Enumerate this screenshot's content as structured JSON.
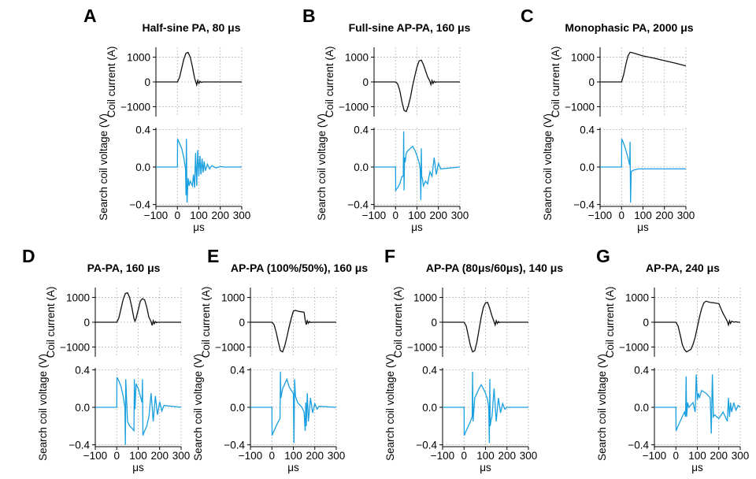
{
  "colors": {
    "current": "#111111",
    "voltage": "#1aa0e0",
    "grid": "#b8b8b8"
  },
  "chart_data": [
    {
      "letter": "A",
      "title": "Half-sine PA, 80 μs",
      "type": "line",
      "current": {
        "ylabel": "Coil current (A)",
        "ylim": [
          -1400,
          1400
        ],
        "yticks": [
          "1000",
          "0",
          "−1000"
        ],
        "grid": true,
        "x": [
          -100,
          0,
          10,
          20,
          30,
          40,
          50,
          60,
          70,
          80,
          85,
          90,
          95,
          100,
          105,
          110,
          120,
          130,
          300
        ],
        "y": [
          0,
          0,
          180,
          550,
          920,
          1160,
          1190,
          1000,
          620,
          150,
          30,
          -120,
          60,
          -60,
          30,
          -15,
          0,
          0,
          0
        ]
      },
      "voltage": {
        "ylabel": "Search coil voltage (V)",
        "ylim": [
          -0.42,
          0.42
        ],
        "yticks": [
          "0.4",
          "0.0",
          "−0.4"
        ],
        "grid": true,
        "xlabel": "μs",
        "xlim": [
          -100,
          300
        ],
        "xticks": [
          "−100",
          "0",
          "100",
          "200",
          "300"
        ],
        "x": [
          -100,
          0,
          1,
          5,
          10,
          20,
          30,
          38,
          40,
          42,
          45,
          50,
          55,
          60,
          70,
          75,
          80,
          85,
          90,
          95,
          100,
          105,
          110,
          115,
          120,
          125,
          130,
          140,
          150,
          160,
          180,
          200,
          220,
          300
        ],
        "y": [
          0,
          0,
          0.3,
          0.28,
          0.25,
          0.2,
          0.1,
          -0.02,
          -0.3,
          0.3,
          -0.38,
          -0.12,
          -0.2,
          -0.15,
          -0.2,
          -0.08,
          -0.22,
          0.15,
          -0.2,
          0.18,
          -0.1,
          0.12,
          -0.08,
          0.09,
          -0.06,
          0.06,
          -0.04,
          0.03,
          -0.02,
          0.015,
          -0.01,
          0.005,
          0,
          0
        ]
      }
    },
    {
      "letter": "B",
      "title": "Full-sine AP-PA, 160 μs",
      "type": "line",
      "current": {
        "ylabel": "Coil current (A)",
        "ylim": [
          -1400,
          1400
        ],
        "yticks": [
          "1000",
          "0",
          "−1000"
        ],
        "grid": true,
        "x": [
          -100,
          0,
          10,
          20,
          30,
          40,
          50,
          60,
          70,
          80,
          90,
          100,
          110,
          120,
          130,
          140,
          150,
          160,
          165,
          170,
          175,
          180,
          185,
          190,
          200,
          300
        ],
        "y": [
          0,
          0,
          -80,
          -350,
          -800,
          -1150,
          -1200,
          -950,
          -600,
          -150,
          250,
          600,
          850,
          880,
          700,
          450,
          200,
          30,
          -110,
          60,
          -60,
          30,
          -20,
          0,
          0,
          0
        ]
      },
      "voltage": {
        "ylabel": "Search coil voltage (V)",
        "ylim": [
          -0.42,
          0.42
        ],
        "yticks": [
          "0.4",
          "0.0",
          "−0.4"
        ],
        "grid": true,
        "xlabel": "μs",
        "xlim": [
          -100,
          300
        ],
        "xticks": [
          "−100",
          "0",
          "100",
          "200",
          "300"
        ],
        "x": [
          -100,
          0,
          1,
          10,
          20,
          30,
          36,
          38,
          40,
          42,
          45,
          50,
          60,
          70,
          80,
          90,
          100,
          110,
          115,
          118,
          120,
          122,
          125,
          130,
          140,
          150,
          160,
          170,
          180,
          190,
          200,
          210,
          300
        ],
        "y": [
          0,
          0,
          -0.25,
          -0.22,
          -0.18,
          -0.1,
          -0.1,
          0.38,
          -0.25,
          0.1,
          0.05,
          0.15,
          0.18,
          0.2,
          0.22,
          0.18,
          0.12,
          0.05,
          -0.02,
          -0.35,
          0.2,
          -0.1,
          -0.12,
          -0.2,
          -0.15,
          -0.18,
          -0.05,
          -0.1,
          0.1,
          -0.08,
          0.04,
          -0.02,
          0
        ]
      }
    },
    {
      "letter": "C",
      "title": "Monophasic PA, 2000 μs",
      "type": "line",
      "current": {
        "ylabel": "Coil current (A)",
        "ylim": [
          -1400,
          1400
        ],
        "yticks": [
          "1000",
          "0",
          "−1000"
        ],
        "grid": true,
        "x": [
          -100,
          0,
          10,
          20,
          30,
          40,
          50,
          100,
          150,
          200,
          250,
          300
        ],
        "y": [
          0,
          0,
          300,
          700,
          1050,
          1200,
          1180,
          1050,
          960,
          860,
          760,
          650
        ]
      },
      "voltage": {
        "ylabel": "Search coil voltage (V)",
        "ylim": [
          -0.42,
          0.42
        ],
        "yticks": [
          "0.4",
          "0.0",
          "−0.4"
        ],
        "grid": true,
        "xlabel": "μs",
        "xlim": [
          -100,
          300
        ],
        "xticks": [
          "−100",
          "0",
          "100",
          "200",
          "300"
        ],
        "x": [
          -100,
          0,
          1,
          10,
          20,
          30,
          38,
          40,
          42,
          45,
          50,
          60,
          80,
          300
        ],
        "y": [
          0,
          0,
          0.3,
          0.25,
          0.18,
          0.1,
          0.02,
          0.27,
          -0.38,
          -0.05,
          -0.04,
          -0.03,
          -0.02,
          -0.02
        ]
      }
    },
    {
      "letter": "D",
      "title": "PA-PA, 160 μs",
      "type": "line",
      "current": {
        "ylabel": "Coil current (A)",
        "ylim": [
          -1400,
          1400
        ],
        "yticks": [
          "1000",
          "0",
          "−1000"
        ],
        "grid": true,
        "x": [
          -100,
          0,
          10,
          20,
          30,
          40,
          50,
          60,
          70,
          80,
          85,
          90,
          100,
          110,
          120,
          130,
          140,
          150,
          160,
          165,
          170,
          175,
          180,
          185,
          190,
          200,
          300
        ],
        "y": [
          0,
          0,
          180,
          550,
          920,
          1160,
          1190,
          1000,
          620,
          150,
          40,
          150,
          500,
          850,
          950,
          900,
          600,
          200,
          20,
          -130,
          60,
          -60,
          30,
          -20,
          0,
          0,
          0
        ]
      },
      "voltage": {
        "ylabel": "Search coil voltage (V)",
        "ylim": [
          -0.42,
          0.42
        ],
        "yticks": [
          "0.4",
          "0.0",
          "−0.4"
        ],
        "grid": true,
        "xlabel": "μs",
        "xlim": [
          -100,
          300
        ],
        "xticks": [
          "−100",
          "0",
          "100",
          "200",
          "300"
        ],
        "x": [
          -100,
          0,
          1,
          10,
          20,
          30,
          38,
          40,
          42,
          50,
          60,
          70,
          80,
          82,
          85,
          90,
          100,
          110,
          118,
          120,
          122,
          130,
          140,
          150,
          160,
          170,
          180,
          190,
          200,
          210,
          220,
          300
        ],
        "y": [
          0,
          0,
          0.32,
          0.28,
          0.22,
          0.12,
          0.0,
          -0.4,
          0.3,
          -0.15,
          -0.2,
          -0.22,
          -0.25,
          0.3,
          -0.02,
          0.25,
          0.2,
          0.12,
          0.05,
          0.3,
          -0.3,
          -0.25,
          -0.2,
          -0.1,
          0.15,
          -0.15,
          0.12,
          -0.08,
          0.06,
          -0.04,
          0.02,
          0
        ]
      }
    },
    {
      "letter": "E",
      "title": "AP-PA (100%/50%), 160 μs",
      "type": "line",
      "current": {
        "ylabel": "Coil current (A)",
        "ylim": [
          -1400,
          1400
        ],
        "yticks": [
          "1000",
          "0",
          "−1000"
        ],
        "grid": true,
        "x": [
          -100,
          0,
          10,
          20,
          30,
          40,
          50,
          60,
          70,
          80,
          90,
          100,
          110,
          120,
          130,
          140,
          150,
          155,
          160,
          165,
          170,
          175,
          180,
          190,
          300
        ],
        "y": [
          0,
          0,
          -100,
          -400,
          -800,
          -1150,
          -1200,
          -950,
          -600,
          -200,
          150,
          450,
          480,
          450,
          430,
          420,
          400,
          100,
          -100,
          60,
          -40,
          30,
          -10,
          0,
          0
        ]
      },
      "voltage": {
        "ylabel": "Search coil voltage (V)",
        "ylim": [
          -0.42,
          0.42
        ],
        "yticks": [
          "0.4",
          "0.0",
          "−0.4"
        ],
        "grid": true,
        "xlabel": "μs",
        "xlim": [
          -100,
          300
        ],
        "xticks": [
          "−100",
          "0",
          "100",
          "200",
          "300"
        ],
        "x": [
          -100,
          0,
          1,
          10,
          20,
          30,
          38,
          40,
          42,
          50,
          60,
          70,
          80,
          90,
          100,
          103,
          106,
          110,
          120,
          140,
          150,
          155,
          158,
          160,
          165,
          170,
          180,
          190,
          200,
          210,
          220,
          300
        ],
        "y": [
          0,
          0,
          -0.3,
          -0.25,
          -0.2,
          -0.15,
          -0.12,
          0.38,
          0.1,
          0.2,
          0.25,
          0.3,
          0.22,
          0.18,
          0.15,
          -0.38,
          0.3,
          0.12,
          0.05,
          0.0,
          -0.05,
          -0.25,
          0.05,
          -0.2,
          0.15,
          -0.15,
          0.1,
          -0.06,
          0.04,
          -0.02,
          0.01,
          0
        ]
      }
    },
    {
      "letter": "F",
      "title": "AP-PA (80μs/60μs), 140 μs",
      "type": "line",
      "current": {
        "ylabel": "Coil current (A)",
        "ylim": [
          -1400,
          1400
        ],
        "yticks": [
          "1000",
          "0",
          "−1000"
        ],
        "grid": true,
        "x": [
          -100,
          0,
          10,
          20,
          30,
          40,
          50,
          60,
          70,
          80,
          90,
          100,
          110,
          120,
          130,
          140,
          145,
          150,
          155,
          160,
          165,
          170,
          180,
          300
        ],
        "y": [
          0,
          0,
          -150,
          -550,
          -950,
          -1200,
          -1150,
          -800,
          -300,
          200,
          600,
          780,
          800,
          550,
          250,
          20,
          -110,
          60,
          -50,
          30,
          -15,
          0,
          0,
          0
        ]
      },
      "voltage": {
        "ylabel": "Search coil voltage (V)",
        "ylim": [
          -0.42,
          0.42
        ],
        "yticks": [
          "0.4",
          "0.0",
          "−0.4"
        ],
        "grid": true,
        "xlabel": "μs",
        "xlim": [
          -100,
          300
        ],
        "xticks": [
          "−100",
          "0",
          "100",
          "200",
          "300"
        ],
        "x": [
          -100,
          0,
          1,
          10,
          20,
          30,
          38,
          40,
          42,
          50,
          60,
          70,
          80,
          90,
          100,
          110,
          115,
          118,
          120,
          122,
          125,
          130,
          140,
          150,
          160,
          170,
          180,
          190,
          200,
          300
        ],
        "y": [
          0,
          0,
          -0.3,
          -0.25,
          -0.2,
          -0.15,
          -0.1,
          0.38,
          -0.15,
          0.1,
          0.15,
          0.2,
          0.24,
          0.2,
          0.15,
          0.08,
          0.0,
          -0.38,
          0.3,
          -0.2,
          -0.15,
          -0.1,
          0.2,
          -0.15,
          0.1,
          -0.06,
          0.04,
          -0.02,
          0,
          0
        ]
      }
    },
    {
      "letter": "G",
      "title": "AP-PA, 240 μs",
      "type": "line",
      "current": {
        "ylabel": "Coil current (A)",
        "ylim": [
          -1400,
          1400
        ],
        "yticks": [
          "1000",
          "0",
          "−1000"
        ],
        "grid": true,
        "x": [
          -100,
          0,
          10,
          20,
          30,
          40,
          50,
          60,
          70,
          80,
          90,
          100,
          110,
          120,
          130,
          140,
          160,
          180,
          200,
          210,
          220,
          230,
          240,
          245,
          250,
          255,
          260,
          270,
          280,
          290,
          300
        ],
        "y": [
          0,
          0,
          -150,
          -500,
          -900,
          -1100,
          -1200,
          -1150,
          -1100,
          -900,
          -600,
          -200,
          200,
          550,
          780,
          850,
          800,
          780,
          750,
          550,
          350,
          200,
          30,
          -110,
          60,
          -50,
          40,
          0,
          20,
          0,
          0
        ]
      },
      "voltage": {
        "ylabel": "Search coil voltage (V)",
        "ylim": [
          -0.42,
          0.42
        ],
        "yticks": [
          "0.4",
          "0.0",
          "−0.4"
        ],
        "grid": true,
        "xlabel": "μs",
        "xlim": [
          -100,
          300
        ],
        "xticks": [
          "−100",
          "0",
          "100",
          "200",
          "300"
        ],
        "x": [
          -100,
          0,
          1,
          10,
          20,
          30,
          40,
          45,
          48,
          50,
          55,
          60,
          80,
          90,
          95,
          100,
          105,
          110,
          120,
          140,
          160,
          165,
          170,
          175,
          180,
          200,
          220,
          240,
          245,
          250,
          255,
          260,
          270,
          280,
          290,
          300
        ],
        "y": [
          0,
          0,
          -0.25,
          -0.2,
          -0.15,
          -0.1,
          -0.05,
          -0.1,
          0.33,
          -0.1,
          0.05,
          0.0,
          0.05,
          -0.05,
          0.35,
          0.08,
          0.15,
          0.1,
          0.18,
          0.15,
          0.1,
          -0.28,
          0.35,
          -0.1,
          -0.08,
          -0.12,
          -0.05,
          -0.15,
          0.1,
          -0.1,
          0.05,
          -0.05,
          0.05,
          -0.03,
          0.02,
          0
        ]
      }
    }
  ]
}
